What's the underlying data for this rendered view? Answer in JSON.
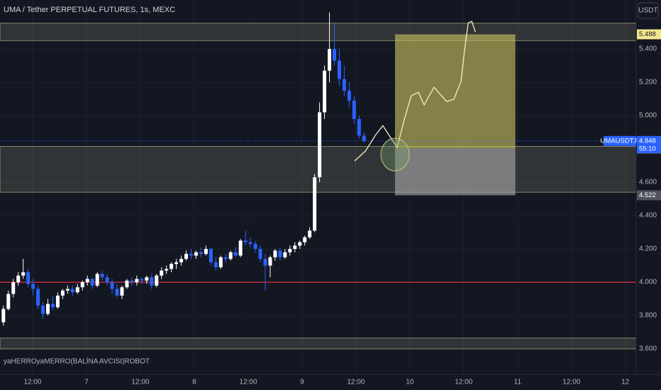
{
  "chart_data": {
    "type": "candlestick",
    "title": "UMA / Tether PERPETUAL FUTURES, 1s, MEXC",
    "currency_button": "USDT",
    "indicator_label": "yaHERROyaMERRO(BALİNA AVCISI)ROBOT",
    "symbol": "UMAUSDT.P",
    "last_price": 4.848,
    "countdown": "55:10",
    "up_color": "#ffffff",
    "down_color": "#2962ff",
    "grid": true,
    "xlim": [
      4.74,
      146.4
    ],
    "ylim": [
      3.447,
      5.694
    ],
    "xticks": [
      {
        "value": 12,
        "label": "12:00"
      },
      {
        "value": 24,
        "label": "7"
      },
      {
        "value": 36,
        "label": "12:00"
      },
      {
        "value": 48,
        "label": "8"
      },
      {
        "value": 60,
        "label": "12:00"
      },
      {
        "value": 72,
        "label": "9"
      },
      {
        "value": 84,
        "label": "12:00"
      },
      {
        "value": 96,
        "label": "10"
      },
      {
        "value": 108,
        "label": "12:00"
      },
      {
        "value": 120,
        "label": "11"
      },
      {
        "value": 132,
        "label": "12:00"
      },
      {
        "value": 144,
        "label": "12"
      }
    ],
    "yticks": [
      {
        "value": 3.6,
        "label": "3.600"
      },
      {
        "value": 3.8,
        "label": "3.800"
      },
      {
        "value": 4.0,
        "label": "4.000"
      },
      {
        "value": 4.2,
        "label": "4.200"
      },
      {
        "value": 4.4,
        "label": "4.400"
      },
      {
        "value": 4.6,
        "label": "4.600"
      },
      {
        "value": 5.0,
        "label": "5.000"
      },
      {
        "value": 5.2,
        "label": "5.200"
      },
      {
        "value": 5.4,
        "label": "5.400"
      }
    ],
    "x": [
      5.5,
      6.6,
      7.7,
      8.8,
      9.9,
      11,
      12.1,
      13.2,
      14.3,
      15.4,
      16.5,
      17.6,
      18.7,
      19.8,
      20.9,
      22,
      23.1,
      24.2,
      25.3,
      26.4,
      27.5,
      28.6,
      29.7,
      30.8,
      31.9,
      33,
      34.1,
      35.2,
      36.3,
      37.4,
      38.5,
      39.6,
      40.7,
      41.8,
      42.9,
      44,
      45.1,
      46.2,
      47.3,
      48.4,
      49.5,
      50.6,
      51.7,
      52.8,
      53.9,
      55,
      56.1,
      57.2,
      58.3,
      59.4,
      60.5,
      61.6,
      62.7,
      63.8,
      64.9,
      66,
      67.1,
      68.2,
      69.3,
      70.4,
      71.5,
      72.6,
      73.7,
      74.8,
      75.9,
      77,
      78.1,
      79.2,
      80.3,
      81.4,
      82.5,
      83.6,
      84.7,
      85.8
    ],
    "open": [
      3.76,
      3.84,
      3.93,
      4.0,
      4.04,
      4.06,
      3.99,
      3.96,
      3.86,
      3.81,
      3.87,
      3.85,
      3.92,
      3.95,
      3.96,
      3.94,
      3.97,
      4.0,
      4.02,
      3.98,
      4.05,
      4.03,
      4.0,
      3.96,
      3.92,
      3.97,
      4.01,
      4.0,
      4.02,
      4.01,
      4.03,
      3.98,
      4.04,
      4.07,
      4.08,
      4.11,
      4.12,
      4.14,
      4.17,
      4.16,
      4.18,
      4.17,
      4.2,
      4.12,
      4.09,
      4.15,
      4.14,
      4.18,
      4.16,
      4.25,
      4.24,
      4.23,
      4.2,
      4.14,
      4.1,
      4.15,
      4.19,
      4.15,
      4.18,
      4.2,
      4.22,
      4.24,
      4.27,
      4.31,
      4.63,
      5.02,
      5.27,
      5.4,
      5.33,
      5.22,
      5.15,
      5.09,
      4.98,
      4.88
    ],
    "high": [
      3.86,
      3.95,
      4.02,
      4.06,
      4.14,
      4.08,
      4.02,
      3.98,
      3.88,
      3.9,
      3.92,
      3.94,
      3.96,
      3.98,
      3.98,
      3.99,
      4.01,
      4.04,
      4.03,
      4.06,
      4.07,
      4.05,
      4.02,
      3.99,
      3.98,
      4.02,
      4.03,
      4.04,
      4.03,
      4.04,
      4.05,
      4.05,
      4.09,
      4.1,
      4.12,
      4.14,
      4.16,
      4.19,
      4.2,
      4.19,
      4.21,
      4.22,
      4.21,
      4.15,
      4.16,
      4.17,
      4.19,
      4.21,
      4.26,
      4.31,
      4.27,
      4.25,
      4.22,
      4.17,
      4.16,
      4.2,
      4.21,
      4.2,
      4.22,
      4.24,
      4.25,
      4.28,
      4.33,
      4.65,
      5.08,
      5.3,
      5.62,
      5.55,
      5.4,
      5.3,
      5.2,
      5.12,
      5.0,
      4.9
    ],
    "low": [
      3.74,
      3.83,
      3.91,
      3.98,
      4.02,
      3.97,
      3.92,
      3.84,
      3.78,
      3.8,
      3.83,
      3.84,
      3.9,
      3.93,
      3.92,
      3.93,
      3.95,
      3.98,
      3.96,
      3.97,
      4.01,
      3.98,
      3.93,
      3.91,
      3.9,
      3.96,
      3.98,
      3.98,
      3.99,
      3.99,
      3.96,
      3.97,
      4.02,
      4.05,
      4.06,
      4.08,
      4.1,
      4.13,
      4.14,
      4.14,
      4.15,
      4.16,
      4.1,
      4.07,
      4.08,
      4.12,
      4.13,
      4.15,
      4.15,
      4.22,
      4.21,
      4.18,
      4.12,
      3.95,
      4.03,
      4.13,
      4.13,
      4.14,
      4.16,
      4.18,
      4.2,
      4.22,
      4.26,
      4.3,
      4.6,
      4.98,
      5.2,
      5.3,
      5.18,
      5.12,
      5.05,
      4.95,
      4.86,
      4.84
    ],
    "close": [
      3.84,
      3.93,
      4.0,
      4.04,
      4.06,
      3.99,
      3.96,
      3.86,
      3.81,
      3.87,
      3.85,
      3.92,
      3.95,
      3.96,
      3.94,
      3.97,
      4.0,
      4.02,
      3.98,
      4.05,
      4.03,
      4.0,
      3.96,
      3.92,
      3.97,
      4.01,
      4.0,
      4.02,
      4.01,
      4.03,
      3.98,
      4.04,
      4.07,
      4.08,
      4.11,
      4.12,
      4.14,
      4.17,
      4.16,
      4.18,
      4.17,
      4.2,
      4.12,
      4.09,
      4.15,
      4.14,
      4.18,
      4.16,
      4.25,
      4.24,
      4.23,
      4.2,
      4.14,
      4.1,
      4.15,
      4.19,
      4.15,
      4.18,
      4.2,
      4.22,
      4.24,
      4.27,
      4.31,
      4.63,
      5.02,
      5.27,
      5.4,
      5.33,
      5.22,
      5.15,
      5.09,
      4.98,
      4.88,
      4.848
    ],
    "level_line": {
      "value": 4.0,
      "color": "#f23645"
    },
    "zones": [
      {
        "from": 5.45,
        "to": 5.555
      },
      {
        "from": 4.54,
        "to": 4.815
      },
      {
        "from": 3.6,
        "to": 3.665
      }
    ],
    "position": {
      "x_start": 92.7,
      "x_end": 119.5,
      "entry": 4.803,
      "target": 5.488,
      "stop": 4.522
    },
    "forecast_path": {
      "x": [
        83.7,
        86.1,
        88.4,
        90.0,
        91.3,
        93.2,
        94.7,
        96.3,
        97.9,
        99.2,
        100.3,
        101.4,
        102.6,
        104.2,
        105.8,
        107.4,
        108.2,
        109.0,
        109.8,
        110.6
      ],
      "y": [
        4.728,
        4.787,
        4.885,
        4.94,
        4.885,
        4.809,
        4.97,
        5.119,
        5.14,
        5.064,
        5.119,
        5.17,
        5.132,
        5.085,
        5.098,
        5.204,
        5.396,
        5.557,
        5.566,
        5.502
      ]
    }
  }
}
